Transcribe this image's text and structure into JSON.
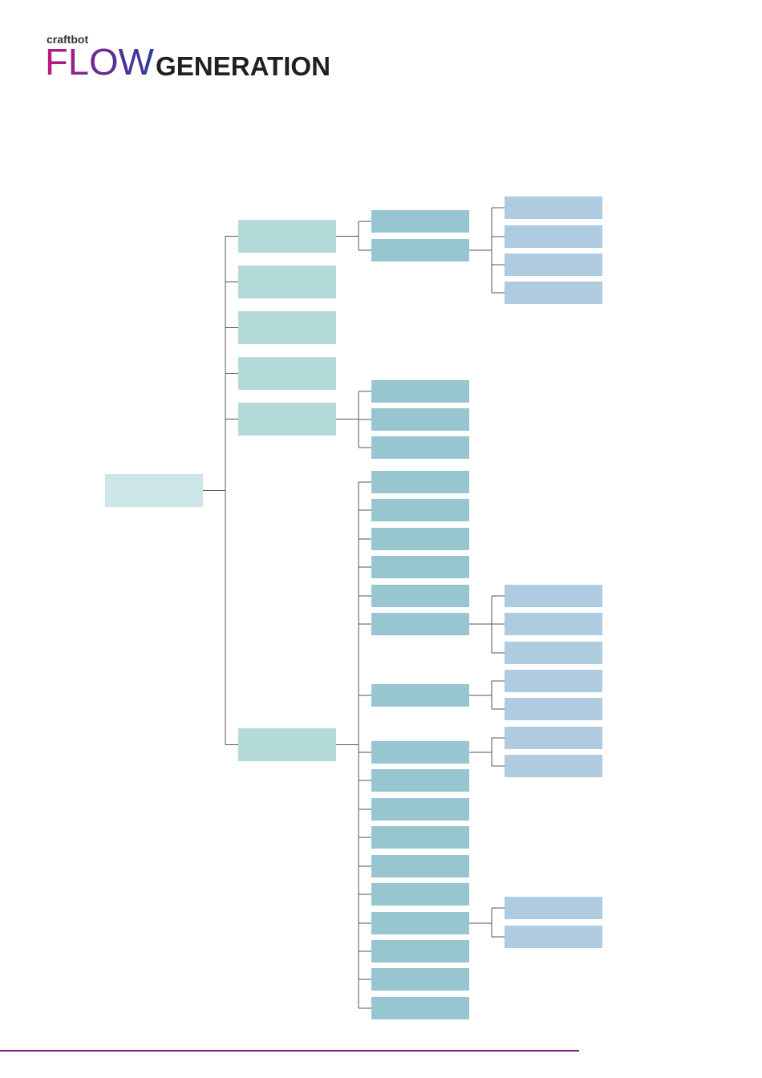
{
  "header": {
    "brand": "craftbot",
    "title_part1": "FLOW",
    "title_part2": "GENERATION"
  }
}
